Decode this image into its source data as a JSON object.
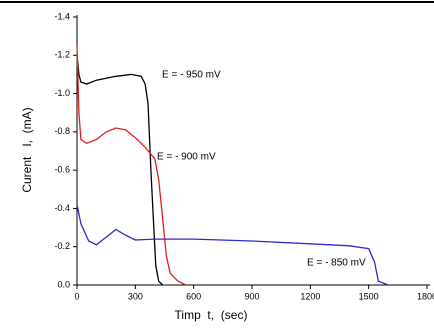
{
  "chart_data": {
    "type": "line",
    "x_label": "Timp  t,  (sec)",
    "y_label": "Curent   I,  (mA)",
    "xlim": [
      0,
      1800
    ],
    "xticks": [
      0,
      300,
      600,
      900,
      1200,
      1500,
      1800
    ],
    "ylim": [
      0,
      -1.4
    ],
    "yticks": [
      {
        "value": 0,
        "label": "0.0"
      },
      -0.2,
      -0.4,
      -0.6,
      -0.8,
      {
        "value": -1,
        "label": "-1.0"
      },
      -1.2,
      -1.4
    ],
    "series": [
      {
        "name": "E = - 950 mV",
        "color": "#000000",
        "x": [
          0,
          10,
          20,
          50,
          100,
          200,
          280,
          330,
          350,
          365,
          380,
          395,
          405,
          420,
          440
        ],
        "values": [
          -1.2,
          -1.1,
          -1.06,
          -1.05,
          -1.07,
          -1.09,
          -1.1,
          -1.09,
          -1.05,
          -0.95,
          -0.6,
          -0.3,
          -0.1,
          -0.02,
          0
        ]
      },
      {
        "name": "E = - 900 mV",
        "color": "#e02020",
        "x": [
          0,
          10,
          20,
          50,
          100,
          150,
          200,
          250,
          300,
          350,
          400,
          420,
          440,
          460,
          480,
          520,
          560
        ],
        "values": [
          -1.25,
          -0.9,
          -0.76,
          -0.74,
          -0.76,
          -0.8,
          -0.82,
          -0.81,
          -0.77,
          -0.72,
          -0.66,
          -0.55,
          -0.35,
          -0.15,
          -0.06,
          -0.02,
          0
        ]
      },
      {
        "name": "E = - 850 mV",
        "color": "#2a2ad0",
        "x": [
          0,
          20,
          60,
          100,
          150,
          200,
          250,
          300,
          400,
          600,
          900,
          1200,
          1400,
          1500,
          1530,
          1550,
          1600
        ],
        "values": [
          -0.42,
          -0.32,
          -0.23,
          -0.21,
          -0.25,
          -0.29,
          -0.26,
          -0.235,
          -0.24,
          -0.24,
          -0.23,
          -0.215,
          -0.205,
          -0.19,
          -0.12,
          -0.02,
          0
        ]
      }
    ]
  }
}
